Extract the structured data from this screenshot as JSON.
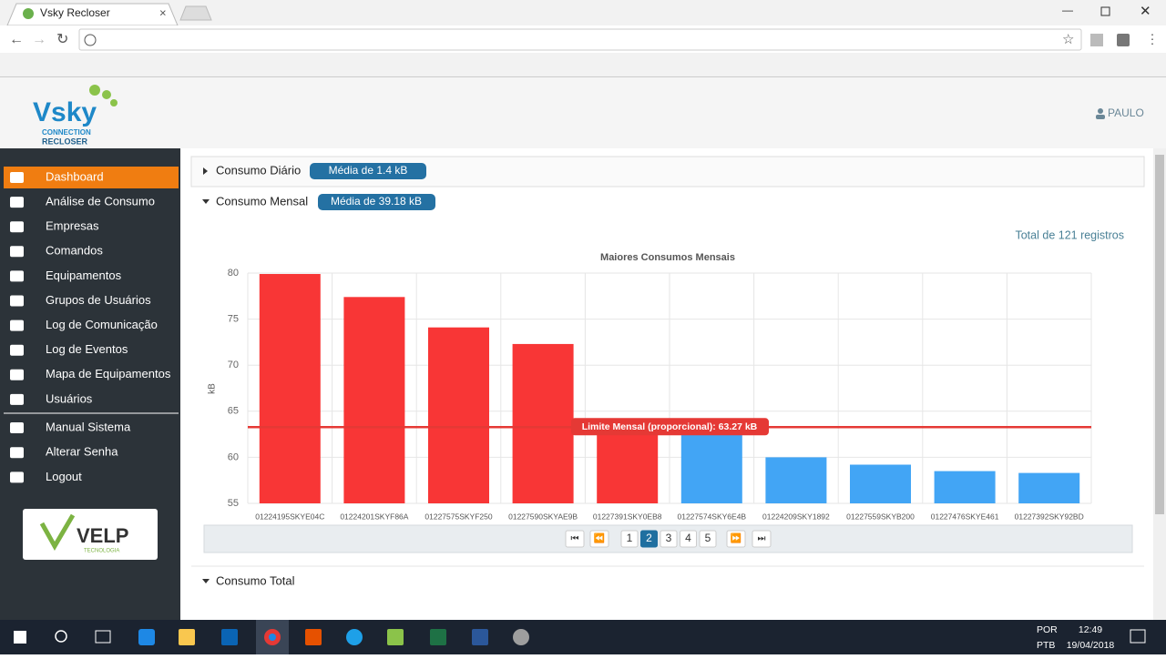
{
  "browser": {
    "tab_title": "Vsky Recloser"
  },
  "header": {
    "logo": "Vsky",
    "logo_sub1": "CONNECTION",
    "logo_sub2": "RECLOSER",
    "user": "PAULO"
  },
  "sidebar": {
    "menu": [
      "Dashboard",
      "Análise de Consumo",
      "Empresas",
      "Comandos",
      "Equipamentos",
      "Grupos de Usuários",
      "Log de Comunicação",
      "Log de Eventos",
      "Mapa de Equipamentos",
      "Usuários"
    ],
    "menu_secondary": [
      "Manual Sistema",
      "Alterar Senha",
      "Logout"
    ],
    "active_index": 0,
    "sponsor_logo": "VELP",
    "sponsor_sub": "TECNOLOGIA"
  },
  "panels": [
    {
      "title": "Consumo Diário",
      "badge": "Média de 1.4 kB"
    },
    {
      "title": "Consumo Mensal",
      "badge": "Média de 39.18 kB"
    }
  ],
  "records": "Total de 121 registros",
  "chart_data": {
    "type": "bar",
    "title": "Maiores Consumos Mensais",
    "y_label": "kB",
    "categories": [
      "01224195SKYE04C",
      "01224201SKYF86A",
      "01227575SKYF250",
      "01227590SKYAE9B",
      "01227391SKY0EB8",
      "01227574SKY6E4B",
      "01224209SKY1892",
      "01227559SKYB200",
      "01227476SKYE461",
      "01227392SKY92BD"
    ],
    "values": [
      79.9,
      77.4,
      74.1,
      72.3,
      63.6,
      63.0,
      60.0,
      59.2,
      58.5,
      58.3
    ],
    "colors": [
      "#f83636",
      "#f83636",
      "#f83636",
      "#f83636",
      "#f83636",
      "#42a5f5",
      "#42a5f5",
      "#42a5f5",
      "#42a5f5",
      "#42a5f5"
    ],
    "ylim": [
      55,
      80
    ],
    "yticks": [
      55,
      60,
      65,
      70,
      75,
      80
    ],
    "grid": true,
    "limit": {
      "value": 63.27,
      "label": "Limite Mensal (proporcional): 63.27 kB",
      "color": "#e53935"
    }
  },
  "pagination": {
    "pages": [
      1,
      2,
      3,
      4,
      5
    ],
    "current": 2
  },
  "section_total": "Consumo Total",
  "taskbar": {
    "lang1": "POR",
    "lang2": "PTB",
    "time": "12:49",
    "date": "19/04/2018"
  }
}
